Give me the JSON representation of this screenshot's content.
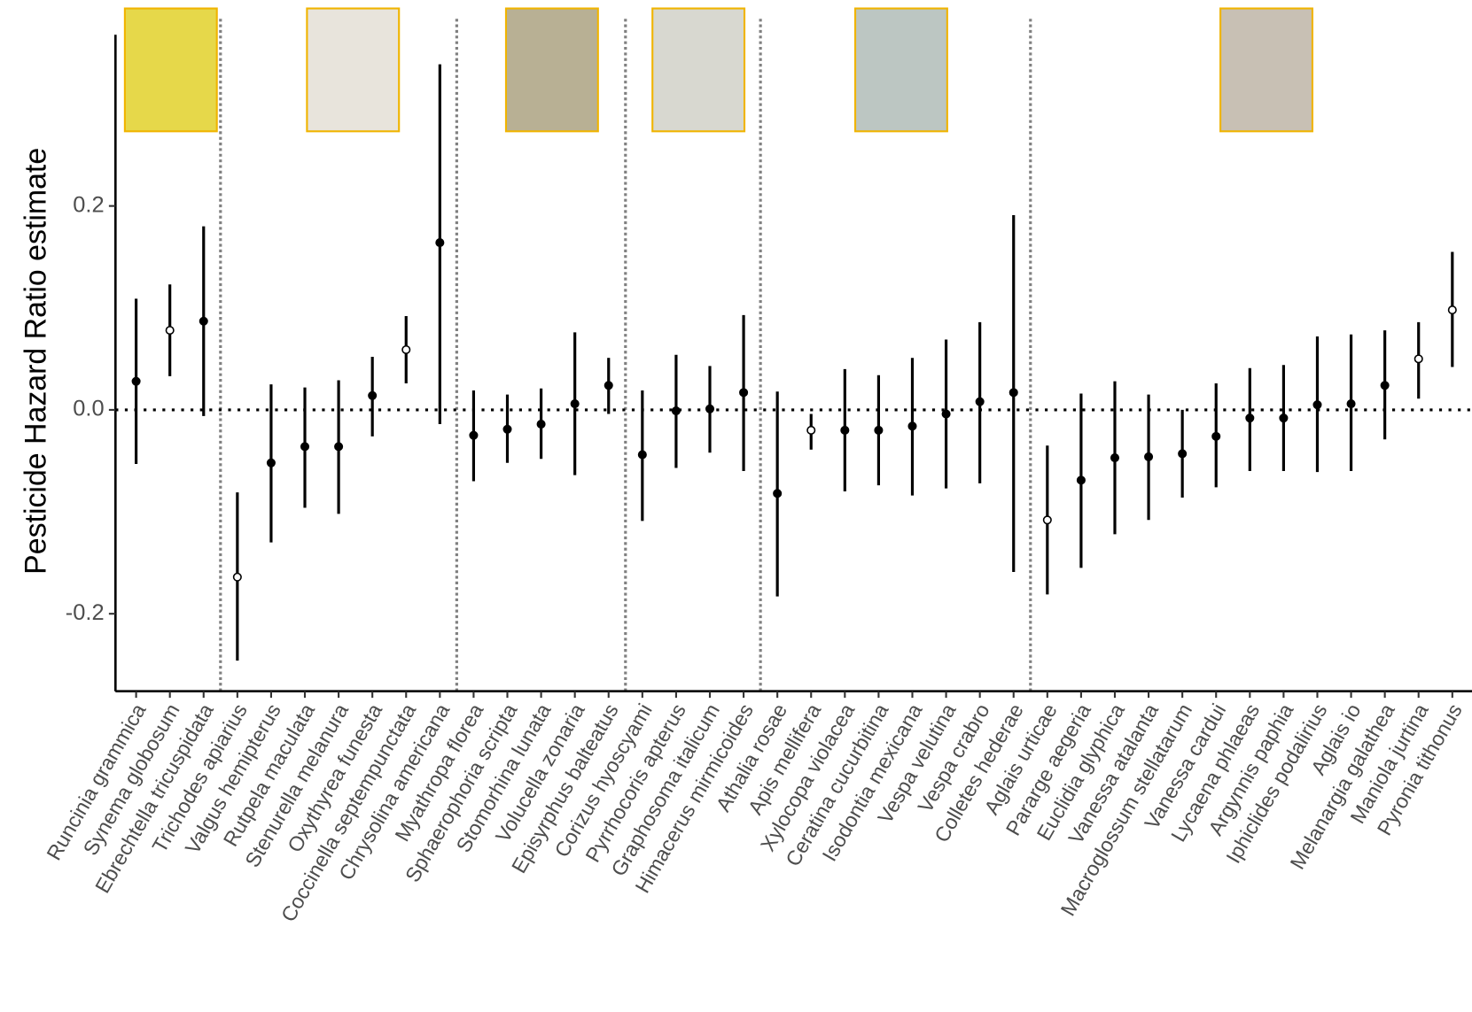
{
  "chart_data": {
    "type": "forest",
    "y_label": "Pesticide Hazard Ratio estimate",
    "categories": [
      "Runcinia grammica",
      "Synema globosum",
      "Ebrechtella tricuspidata",
      "Trichodes apiarius",
      "Valgus hemipterus",
      "Rutpela maculata",
      "Stenurella melanura",
      "Oxythyrea funesta",
      "Coccinella septempunctata",
      "Chrysolina americana",
      "Myathropa florea",
      "Sphaerophoria scripta",
      "Stomorhina lunata",
      "Volucella zonaria",
      "Episyrphus balteatus",
      "Corizus hyoscyami",
      "Pyrrhocoris apterus",
      "Graphosoma italicum",
      "Himacerus mirmicoides",
      "Athalia rosae",
      "Apis mellifera",
      "Xylocopa violacea",
      "Ceratina cucurbitina",
      "Isodontia mexicana",
      "Vespa velutina",
      "Vespa crabro",
      "Colletes hederae",
      "Aglais urticae",
      "Pararge aegeria",
      "Euclidia glyphica",
      "Vanessa atalanta",
      "Macroglossum stellatarum",
      "Vanessa cardui",
      "Lycaena phlaeas",
      "Argynnis paphia",
      "Iphiclides podalirius",
      "Aglais io",
      "Melanargia galathea",
      "Maniola jurtina",
      "Pyronia tithonus"
    ],
    "series": [
      {
        "color": "#000000",
        "values": [
          0.028,
          0.078,
          0.087,
          -0.164,
          -0.052,
          -0.036,
          -0.036,
          0.014,
          0.059,
          0.164,
          -0.025,
          -0.019,
          -0.014,
          0.006,
          0.024,
          -0.044,
          -0.001,
          0.001,
          0.017,
          -0.082,
          -0.02,
          -0.02,
          -0.02,
          -0.016,
          -0.004,
          0.008,
          0.017,
          -0.108,
          -0.069,
          -0.047,
          -0.046,
          -0.043,
          -0.026,
          -0.008,
          -0.008,
          0.005,
          0.006,
          0.024,
          0.05,
          0.098
        ],
        "lower": [
          -0.053,
          0.033,
          -0.006,
          -0.246,
          -0.13,
          -0.096,
          -0.102,
          -0.026,
          0.026,
          -0.014,
          -0.07,
          -0.052,
          -0.048,
          -0.064,
          -0.004,
          -0.109,
          -0.057,
          -0.042,
          -0.06,
          -0.183,
          -0.039,
          -0.08,
          -0.074,
          -0.084,
          -0.077,
          -0.072,
          -0.159,
          -0.181,
          -0.155,
          -0.122,
          -0.108,
          -0.086,
          -0.076,
          -0.06,
          -0.06,
          -0.061,
          -0.06,
          -0.029,
          0.011,
          0.042
        ],
        "upper": [
          0.109,
          0.123,
          0.18,
          -0.081,
          0.025,
          0.022,
          0.029,
          0.052,
          0.092,
          0.339,
          0.019,
          0.015,
          0.021,
          0.076,
          0.051,
          0.019,
          0.054,
          0.043,
          0.093,
          0.018,
          -0.004,
          0.04,
          0.034,
          0.051,
          0.069,
          0.086,
          0.191,
          -0.035,
          0.016,
          0.028,
          0.015,
          0.0,
          0.026,
          0.041,
          0.044,
          0.072,
          0.074,
          0.078,
          0.086,
          0.155
        ],
        "open": [
          false,
          true,
          false,
          true,
          false,
          false,
          false,
          false,
          true,
          false,
          false,
          false,
          false,
          false,
          false,
          false,
          false,
          false,
          false,
          false,
          true,
          false,
          false,
          false,
          false,
          false,
          false,
          true,
          false,
          false,
          false,
          false,
          false,
          false,
          false,
          false,
          false,
          false,
          true,
          true
        ]
      }
    ],
    "ylim": [
      -0.276,
      0.368
    ],
    "yticks": [
      -0.2,
      {
        "value": 0,
        "label": "0.0"
      },
      0.2
    ],
    "reference_line": 0
  }
}
